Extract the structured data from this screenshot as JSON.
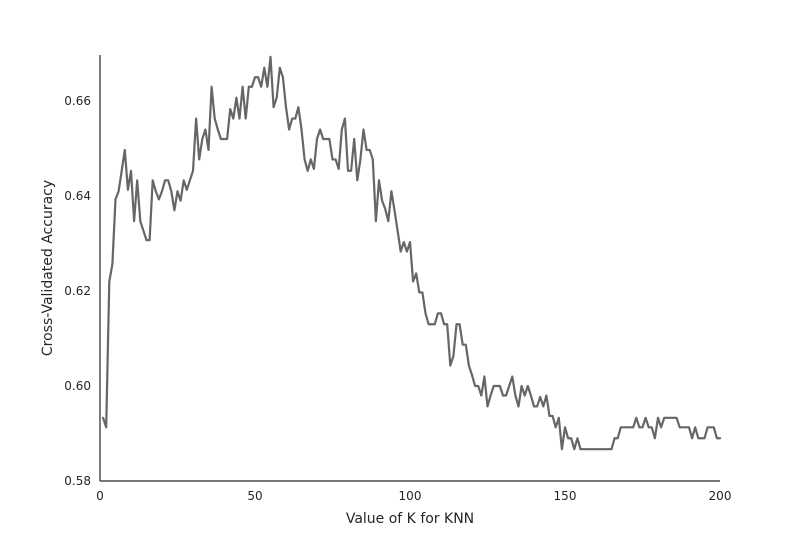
{
  "chart_data": {
    "type": "line",
    "title": "",
    "xlabel": "Value of K for KNN",
    "ylabel": "Cross-Validated Accuracy",
    "xlim": [
      0,
      200
    ],
    "ylim": [
      0.58,
      0.67
    ],
    "grid": false,
    "x_ticks": [
      0,
      50,
      100,
      150,
      200
    ],
    "x_tick_labels": [
      "0",
      "50",
      "100",
      "150",
      "200"
    ],
    "y_ticks": [
      0.58,
      0.6,
      0.62,
      0.64,
      0.66
    ],
    "y_tick_labels": [
      "0.58",
      "0.60",
      "0.62",
      "0.64",
      "0.66"
    ],
    "line_color": "#666666",
    "series": [
      {
        "x": [
          1,
          2,
          3,
          4,
          5,
          6,
          7,
          8,
          9,
          10,
          11,
          12,
          13,
          14,
          15,
          16,
          17,
          18,
          19,
          20,
          21,
          22,
          23,
          24,
          25,
          26,
          27,
          28,
          29,
          30,
          31,
          32,
          33,
          34,
          35,
          36,
          37,
          38,
          39,
          40,
          41,
          42,
          43,
          44,
          45,
          46,
          47,
          48,
          49,
          50,
          51,
          52,
          53,
          54,
          55,
          56,
          57,
          58,
          59,
          60,
          61,
          62,
          63,
          64,
          65,
          66,
          67,
          68,
          69,
          70,
          71,
          72,
          73,
          74,
          75,
          76,
          77,
          78,
          79,
          80,
          81,
          82,
          83,
          84,
          85,
          86,
          87,
          88,
          89,
          90,
          91,
          92,
          93,
          94,
          95,
          96,
          97,
          98,
          99,
          100,
          101,
          102,
          103,
          104,
          105,
          106,
          107,
          108,
          109,
          110,
          111,
          112,
          113,
          114,
          115,
          116,
          117,
          118,
          119,
          120,
          121,
          122,
          123,
          124,
          125,
          126,
          127,
          128,
          129,
          130,
          131,
          132,
          133,
          134,
          135,
          136,
          137,
          138,
          139,
          140,
          141,
          142,
          143,
          144,
          145,
          146,
          147,
          148,
          149,
          150,
          151,
          152,
          153,
          154,
          155,
          156,
          157,
          158,
          159,
          160,
          161,
          162,
          163,
          164,
          165,
          166,
          167,
          168,
          169,
          170,
          171,
          172,
          173,
          174,
          175,
          176,
          177,
          178,
          179,
          180,
          181,
          182,
          183,
          184,
          185,
          186,
          187,
          188,
          189,
          190,
          191,
          192,
          193,
          194,
          195,
          196,
          197,
          198,
          199,
          200
        ],
        "y": [
          0.5933,
          0.5913,
          0.622,
          0.6257,
          0.6393,
          0.641,
          0.6453,
          0.6497,
          0.6413,
          0.6453,
          0.6347,
          0.6433,
          0.6347,
          0.6327,
          0.6307,
          0.6307,
          0.6433,
          0.641,
          0.6393,
          0.641,
          0.6433,
          0.6433,
          0.641,
          0.637,
          0.641,
          0.639,
          0.6433,
          0.6413,
          0.6433,
          0.6453,
          0.6563,
          0.6477,
          0.652,
          0.654,
          0.6497,
          0.663,
          0.6563,
          0.654,
          0.652,
          0.652,
          0.652,
          0.6583,
          0.6563,
          0.6607,
          0.6563,
          0.663,
          0.6563,
          0.663,
          0.663,
          0.665,
          0.665,
          0.663,
          0.667,
          0.663,
          0.6693,
          0.6587,
          0.6607,
          0.667,
          0.665,
          0.6587,
          0.654,
          0.6563,
          0.6563,
          0.6587,
          0.654,
          0.6477,
          0.6453,
          0.6477,
          0.6457,
          0.652,
          0.654,
          0.652,
          0.652,
          0.652,
          0.6477,
          0.6477,
          0.6457,
          0.654,
          0.6563,
          0.6453,
          0.6453,
          0.652,
          0.6433,
          0.6477,
          0.654,
          0.6497,
          0.6497,
          0.6477,
          0.6347,
          0.6433,
          0.639,
          0.6373,
          0.6347,
          0.641,
          0.637,
          0.6327,
          0.6283,
          0.6303,
          0.6283,
          0.6303,
          0.622,
          0.6237,
          0.6197,
          0.6197,
          0.6153,
          0.613,
          0.613,
          0.613,
          0.6153,
          0.6153,
          0.613,
          0.613,
          0.6043,
          0.6063,
          0.613,
          0.613,
          0.6087,
          0.6087,
          0.6043,
          0.6023,
          0.6,
          0.6,
          0.598,
          0.602,
          0.5957,
          0.598,
          0.6,
          0.6,
          0.6,
          0.598,
          0.598,
          0.6,
          0.602,
          0.598,
          0.5957,
          0.6,
          0.598,
          0.6,
          0.598,
          0.5957,
          0.5957,
          0.5977,
          0.5957,
          0.598,
          0.5937,
          0.5937,
          0.5913,
          0.5933,
          0.5867,
          0.5913,
          0.589,
          0.589,
          0.5867,
          0.589,
          0.5867,
          0.5867,
          0.5867,
          0.5867,
          0.5867,
          0.5867,
          0.5867,
          0.5867,
          0.5867,
          0.5867,
          0.5867,
          0.589,
          0.589,
          0.5913,
          0.5913,
          0.5913,
          0.5913,
          0.5913,
          0.5933,
          0.5913,
          0.5913,
          0.5933,
          0.5913,
          0.5913,
          0.589,
          0.5933,
          0.5913,
          0.5933,
          0.5933,
          0.5933,
          0.5933,
          0.5933,
          0.5913,
          0.5913,
          0.5913,
          0.5913,
          0.589,
          0.5913,
          0.589,
          0.589,
          0.589,
          0.5913,
          0.5913,
          0.5913,
          0.589,
          0.589
        ]
      }
    ]
  }
}
